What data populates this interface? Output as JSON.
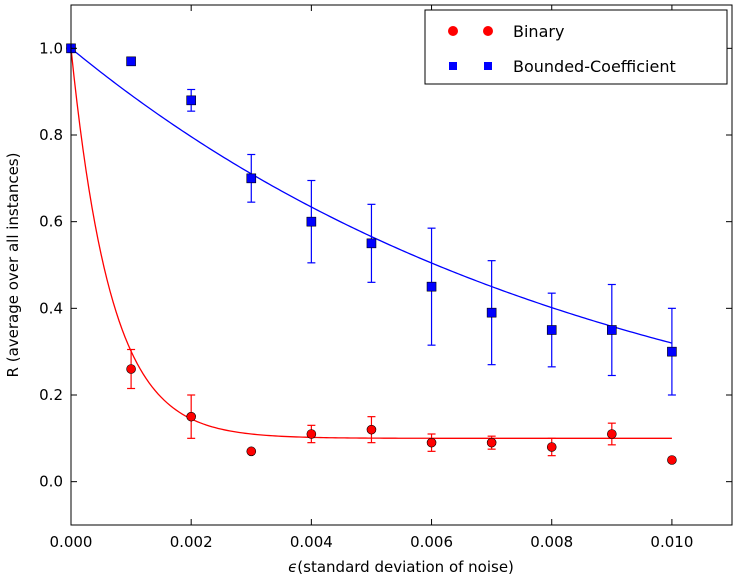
{
  "chart_data": {
    "type": "scatter",
    "title": "",
    "xlabel": "(standard deviation of noise)",
    "xlabel_symbol": "ϵ",
    "ylabel": "R (average over all instances)",
    "xlim": [
      0.0,
      0.011
    ],
    "ylim": [
      -0.1,
      1.1
    ],
    "xticks": [
      "0.000",
      "0.002",
      "0.004",
      "0.006",
      "0.008",
      "0.010"
    ],
    "yticks": [
      "0.0",
      "0.2",
      "0.4",
      "0.6",
      "0.8",
      "1.0"
    ],
    "grid": false,
    "legend_position": "top-right",
    "series": [
      {
        "name": "Binary",
        "color": "#ff0000",
        "marker": "circle",
        "x": [
          0.0,
          0.001,
          0.002,
          0.003,
          0.004,
          0.005,
          0.006,
          0.007,
          0.008,
          0.009,
          0.01
        ],
        "y": [
          1.0,
          0.26,
          0.15,
          0.07,
          0.11,
          0.12,
          0.09,
          0.09,
          0.08,
          0.11,
          0.05
        ],
        "err": [
          0.0,
          0.045,
          0.05,
          0.0,
          0.02,
          0.03,
          0.02,
          0.015,
          0.02,
          0.025,
          0.0
        ]
      },
      {
        "name": "Bounded-Coefficient",
        "color": "#0000ff",
        "marker": "square",
        "x": [
          0.0,
          0.001,
          0.002,
          0.003,
          0.004,
          0.005,
          0.006,
          0.007,
          0.008,
          0.009,
          0.01
        ],
        "y": [
          1.0,
          0.97,
          0.88,
          0.7,
          0.6,
          0.55,
          0.45,
          0.39,
          0.35,
          0.35,
          0.3
        ],
        "err": [
          0.0,
          0.0,
          0.025,
          0.055,
          0.095,
          0.09,
          0.135,
          0.12,
          0.085,
          0.105,
          0.1
        ]
      }
    ],
    "fit_curves": [
      {
        "series": "Binary",
        "color": "#ff0000",
        "form": "exp_decay",
        "a": 0.9,
        "c": 0.1,
        "k": 1500,
        "x_range": [
          0.0,
          0.01
        ]
      },
      {
        "series": "Bounded-Coefficient",
        "color": "#0000ff",
        "form": "exp_decay",
        "a": 1.0,
        "c": 0.0,
        "k": 114,
        "x_range": [
          0.0,
          0.01
        ]
      }
    ]
  }
}
